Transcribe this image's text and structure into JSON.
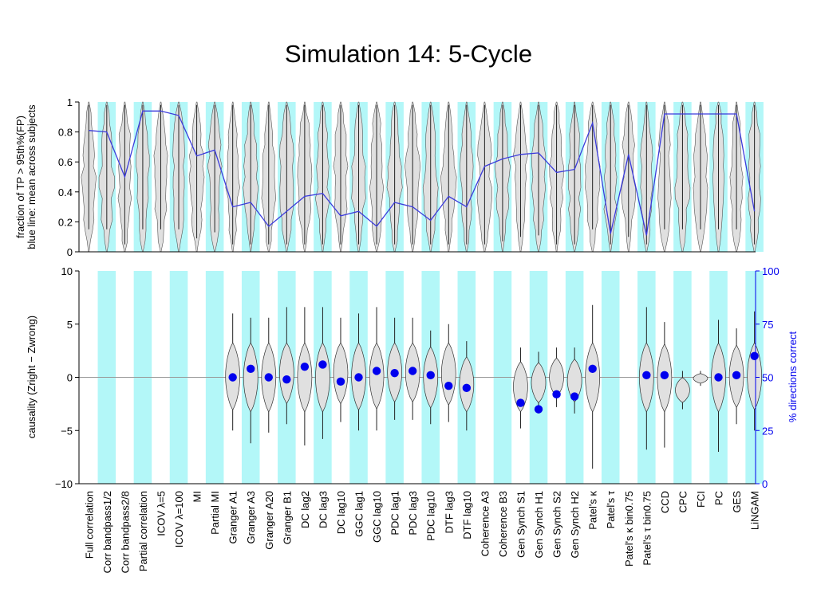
{
  "slide": {
    "title": "Simulation 14: 5-Cycle"
  },
  "chart_data": [
    {
      "type": "violin-line",
      "panel": "top",
      "ylabel": [
        "fraction of TP > 95th%(FP)",
        "blue line: mean across subjects"
      ],
      "ylim": [
        0,
        1
      ],
      "ytick_labels": [
        "0",
        "0.2",
        "0.4",
        "0.6",
        "0.8",
        "1"
      ],
      "categories": [
        "Full correlation",
        "Corr bandpass1/2",
        "Corr bandpass2/8",
        "Partial correlation",
        "ICOV λ=5",
        "ICOV λ=100",
        "MI",
        "Partial MI",
        "Granger A1",
        "Granger A3",
        "Granger A20",
        "Granger B1",
        "DC lag2",
        "DC lag3",
        "DC lag10",
        "GGC lag1",
        "GGC lag10",
        "PDC lag1",
        "PDC lag3",
        "PDC lag10",
        "DTF lag3",
        "DTF lag10",
        "Coherence A3",
        "Coherence B3",
        "Gen Synch S1",
        "Gen Synch H1",
        "Gen Synch S2",
        "Gen Synch H2",
        "Patel's κ",
        "Patel's τ",
        "Patel's κ bin0.75",
        "Patel's τ bin0.75",
        "CCD",
        "CPC",
        "FCI",
        "PC",
        "GES",
        "LiNGAM"
      ],
      "mean_line": [
        0.81,
        0.8,
        0.5,
        0.94,
        0.94,
        0.91,
        0.64,
        0.68,
        0.3,
        0.33,
        0.17,
        0.27,
        0.37,
        0.39,
        0.24,
        0.27,
        0.17,
        0.33,
        0.3,
        0.21,
        0.37,
        0.3,
        0.57,
        0.62,
        0.65,
        0.66,
        0.53,
        0.55,
        0.86,
        0.12,
        0.65,
        0.11,
        0.92,
        0.92,
        0.92,
        0.92,
        0.92,
        0.27
      ],
      "line_color": "#3b3bdc",
      "violin_color": "#e0e0e0"
    },
    {
      "type": "violin-scatter",
      "panel": "bottom",
      "ylabel": "causality  (Zright − Zwrong)",
      "ylim": [
        -10,
        10
      ],
      "ytick_labels": [
        "−10",
        "−5",
        "0",
        "5",
        "10"
      ],
      "y2label": "% directions correct",
      "y2lim": [
        0,
        100
      ],
      "y2tick_labels": [
        "0",
        "25",
        "50",
        "75",
        "100"
      ],
      "percent_correct": [
        null,
        null,
        null,
        null,
        null,
        null,
        null,
        null,
        50,
        54,
        50,
        49,
        55,
        56,
        48,
        50,
        53,
        52,
        53,
        51,
        46,
        45,
        null,
        null,
        38,
        35,
        42,
        41,
        54,
        null,
        null,
        51,
        51,
        null,
        null,
        50,
        51,
        60
      ],
      "violin_ranges": [
        null,
        null,
        null,
        null,
        null,
        null,
        null,
        null,
        [
          -5.0,
          6.0
        ],
        [
          -6.2,
          5.6
        ],
        [
          -5.2,
          5.6
        ],
        [
          -4.4,
          6.6
        ],
        [
          -6.4,
          6.6
        ],
        [
          -5.8,
          6.6
        ],
        [
          -4.2,
          5.6
        ],
        [
          -5.0,
          6.0
        ],
        [
          -5.0,
          6.6
        ],
        [
          -4.0,
          5.6
        ],
        [
          -4.0,
          5.6
        ],
        [
          -4.4,
          4.4
        ],
        [
          -4.2,
          5.0
        ],
        [
          -5.0,
          3.4
        ],
        null,
        null,
        [
          -4.8,
          2.8
        ],
        [
          -3.4,
          2.4
        ],
        [
          -2.8,
          2.8
        ],
        [
          -3.4,
          2.8
        ],
        [
          -8.6,
          6.8
        ],
        null,
        null,
        [
          -6.8,
          6.6
        ],
        [
          -6.6,
          5.2
        ],
        [
          -3.0,
          0.6
        ],
        [
          -0.8,
          0.6
        ],
        [
          -7.0,
          5.4
        ],
        [
          -4.4,
          4.6
        ],
        [
          -5.0,
          6.2
        ]
      ],
      "marker_color": "#0000ee",
      "band_color": "#b3f7f8",
      "axis2_color": "#0000ee"
    }
  ]
}
